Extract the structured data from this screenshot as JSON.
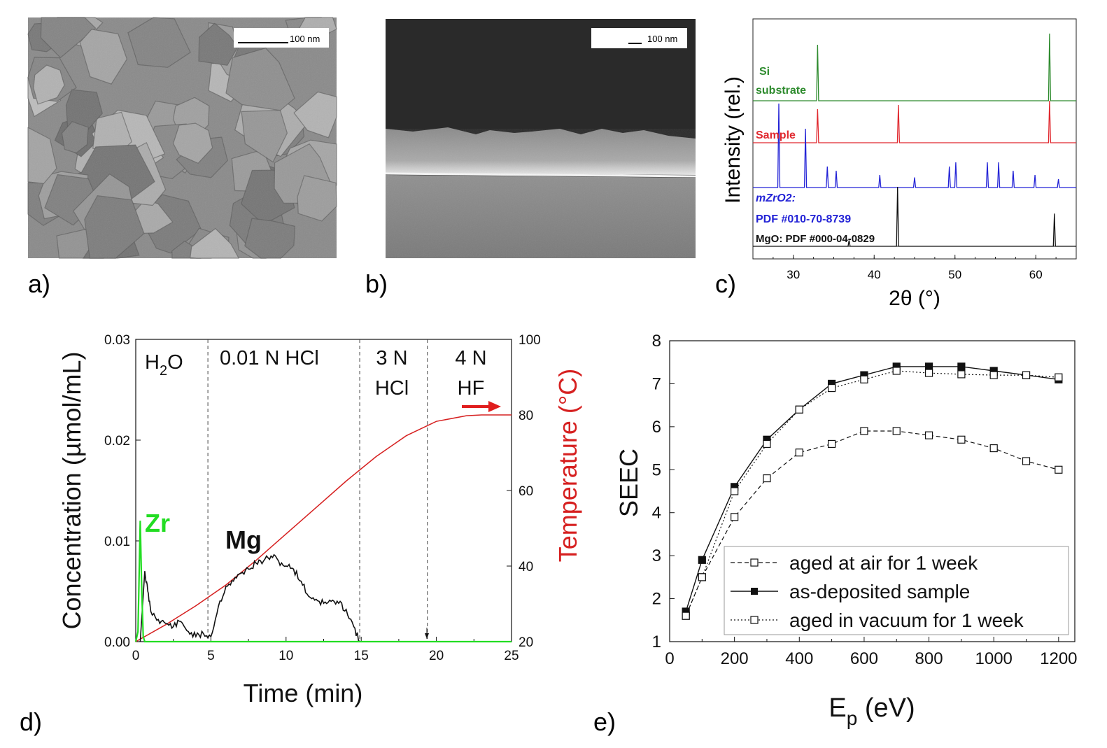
{
  "panels": {
    "a": {
      "label": "a)",
      "scalebar": "100 nm"
    },
    "b": {
      "label": "b)",
      "scalebar": "100 nm"
    },
    "c": {
      "label": "c)",
      "ylabel": "Intensity (rel.)",
      "xlabel": "2θ (°)",
      "xticks": [
        "30",
        "40",
        "50",
        "60"
      ],
      "traces": [
        {
          "name_line1": "Si",
          "name_line2": "substrate",
          "color": "#2e8b2e"
        },
        {
          "name_line1": "Sample",
          "name_line2": "",
          "color": "#e0282e"
        },
        {
          "name_line1": "mZrO2:",
          "name_line2": "PDF #010-70-8739",
          "color": "#2323d6"
        },
        {
          "name_line1": "MgO: PDF #000-04-0829",
          "name_line2": "",
          "color": "#111111"
        }
      ]
    },
    "d": {
      "label": "d)",
      "ylabel_left": "Concentration (µmol/mL)",
      "ylabel_right": "Temperature (°C)",
      "xlabel": "Time (min)",
      "xticks": [
        "0",
        "5",
        "10",
        "15",
        "20",
        "25"
      ],
      "yticks_left": [
        "0.00",
        "0.01",
        "0.02",
        "0.03"
      ],
      "yticks_right": [
        "20",
        "40",
        "60",
        "80",
        "100"
      ],
      "regions": [
        {
          "line1": "H",
          "sub": "2",
          "tail": "O"
        },
        {
          "line1": "0.01 N HCl"
        },
        {
          "line1": "3 N",
          "line2": "HCl"
        },
        {
          "line1": "4 N",
          "line2": "HF"
        }
      ],
      "annotations": {
        "zr": "Zr",
        "mg": "Mg"
      },
      "colors": {
        "zr": "#22dd22",
        "temp": "#d62020",
        "mg": "#111111"
      }
    },
    "e": {
      "label": "e)",
      "ylabel": "SEEC",
      "xlabel": "E",
      "xlabel_sub": "p",
      "xlabel_tail": " (eV)",
      "xticks": [
        "0",
        "200",
        "400",
        "600",
        "800",
        "1000",
        "1200"
      ],
      "yticks": [
        "1",
        "2",
        "3",
        "4",
        "5",
        "6",
        "7",
        "8"
      ],
      "legend": [
        "aged at air for 1 week",
        "as-deposited sample",
        "aged in vacuum for 1 week"
      ]
    }
  },
  "chart_data": [
    {
      "type": "line",
      "panel": "c",
      "title": "",
      "xlabel": "2θ (°)",
      "ylabel": "Intensity (rel.)",
      "xlim": [
        25,
        65
      ],
      "series": [
        {
          "name": "Si substrate",
          "peaks": [
            [
              33.0,
              1.0
            ],
            [
              61.7,
              1.2
            ]
          ]
        },
        {
          "name": "Sample",
          "peaks": [
            [
              33.0,
              0.8
            ],
            [
              43.0,
              0.9
            ],
            [
              61.7,
              1.0
            ]
          ]
        },
        {
          "name": "mZrO2: PDF #010-70-8739",
          "peaks": [
            [
              28.2,
              1.0
            ],
            [
              31.5,
              0.7
            ],
            [
              34.2,
              0.25
            ],
            [
              35.3,
              0.2
            ],
            [
              40.7,
              0.15
            ],
            [
              45.0,
              0.12
            ],
            [
              49.3,
              0.25
            ],
            [
              50.1,
              0.3
            ],
            [
              54.0,
              0.3
            ],
            [
              55.4,
              0.3
            ],
            [
              57.2,
              0.2
            ],
            [
              59.9,
              0.15
            ],
            [
              62.8,
              0.1
            ]
          ]
        },
        {
          "name": "MgO: PDF #000-04-0829",
          "peaks": [
            [
              36.9,
              0.1
            ],
            [
              42.9,
              1.0
            ],
            [
              62.3,
              0.55
            ]
          ]
        }
      ]
    },
    {
      "type": "line",
      "panel": "d",
      "title": "",
      "xlabel": "Time (min)",
      "ylabel": "Concentration (µmol/mL)",
      "ylabel_right": "Temperature (°C)",
      "xlim": [
        0,
        25
      ],
      "ylim": [
        0,
        0.03
      ],
      "ylim_right": [
        20,
        100
      ],
      "region_boundaries_min": [
        4.8,
        14.9,
        19.4
      ],
      "series": [
        {
          "name": "Zr",
          "axis": "left",
          "x": [
            0,
            0.15,
            0.3,
            0.4,
            0.5,
            0.6,
            25
          ],
          "y": [
            0,
            0.001,
            0.012,
            0.005,
            0.0005,
            0,
            0
          ]
        },
        {
          "name": "Mg",
          "axis": "left",
          "x": [
            0.3,
            0.6,
            0.8,
            1.0,
            1.5,
            2.0,
            2.5,
            3.0,
            3.5,
            4.0,
            4.5,
            5.0,
            5.5,
            6.0,
            6.5,
            7.0,
            7.5,
            8.0,
            8.5,
            9.0,
            9.5,
            10.0,
            10.5,
            11.0,
            11.5,
            12.0,
            12.5,
            13.0,
            13.5,
            14.0,
            14.5,
            14.9,
            25
          ],
          "y": [
            0,
            0.007,
            0.005,
            0.003,
            0.0022,
            0.0018,
            0.0015,
            0.002,
            0.001,
            0.0005,
            0.0008,
            0.0005,
            0.0035,
            0.0055,
            0.006,
            0.0068,
            0.0072,
            0.0078,
            0.008,
            0.0085,
            0.008,
            0.0075,
            0.0072,
            0.006,
            0.0045,
            0.0042,
            0.0038,
            0.004,
            0.0038,
            0.0032,
            0.0015,
            0,
            0
          ]
        },
        {
          "name": "Temperature",
          "axis": "right",
          "x": [
            0,
            2,
            4,
            6,
            8,
            10,
            12,
            14,
            16,
            18,
            20,
            22,
            23,
            24,
            25
          ],
          "y": [
            20,
            24.5,
            29.5,
            35,
            41.5,
            48.5,
            55.5,
            62.5,
            69,
            74.5,
            78.3,
            79.8,
            80,
            80,
            80
          ]
        }
      ]
    },
    {
      "type": "line",
      "panel": "e",
      "title": "",
      "xlabel": "Ep (eV)",
      "ylabel": "SEEC",
      "xlim": [
        0,
        1250
      ],
      "ylim": [
        1,
        8
      ],
      "x": [
        50,
        100,
        200,
        300,
        400,
        500,
        600,
        700,
        800,
        900,
        1000,
        1100,
        1200
      ],
      "series": [
        {
          "name": "aged at air for 1 week",
          "style": "dashed-open",
          "values": [
            1.6,
            2.5,
            3.9,
            4.8,
            5.4,
            5.6,
            5.9,
            5.9,
            5.8,
            5.7,
            5.5,
            5.2,
            5.0
          ]
        },
        {
          "name": "as-deposited sample",
          "style": "solid-filled",
          "values": [
            1.7,
            2.9,
            4.6,
            5.7,
            6.4,
            7.0,
            7.2,
            7.4,
            7.4,
            7.4,
            7.3,
            7.2,
            7.1
          ]
        },
        {
          "name": "aged in vacuum for 1 week",
          "style": "dotted-open",
          "values": [
            1.6,
            2.5,
            4.5,
            5.6,
            6.4,
            6.9,
            7.1,
            7.3,
            7.25,
            7.22,
            7.2,
            7.2,
            7.15
          ]
        }
      ]
    }
  ]
}
